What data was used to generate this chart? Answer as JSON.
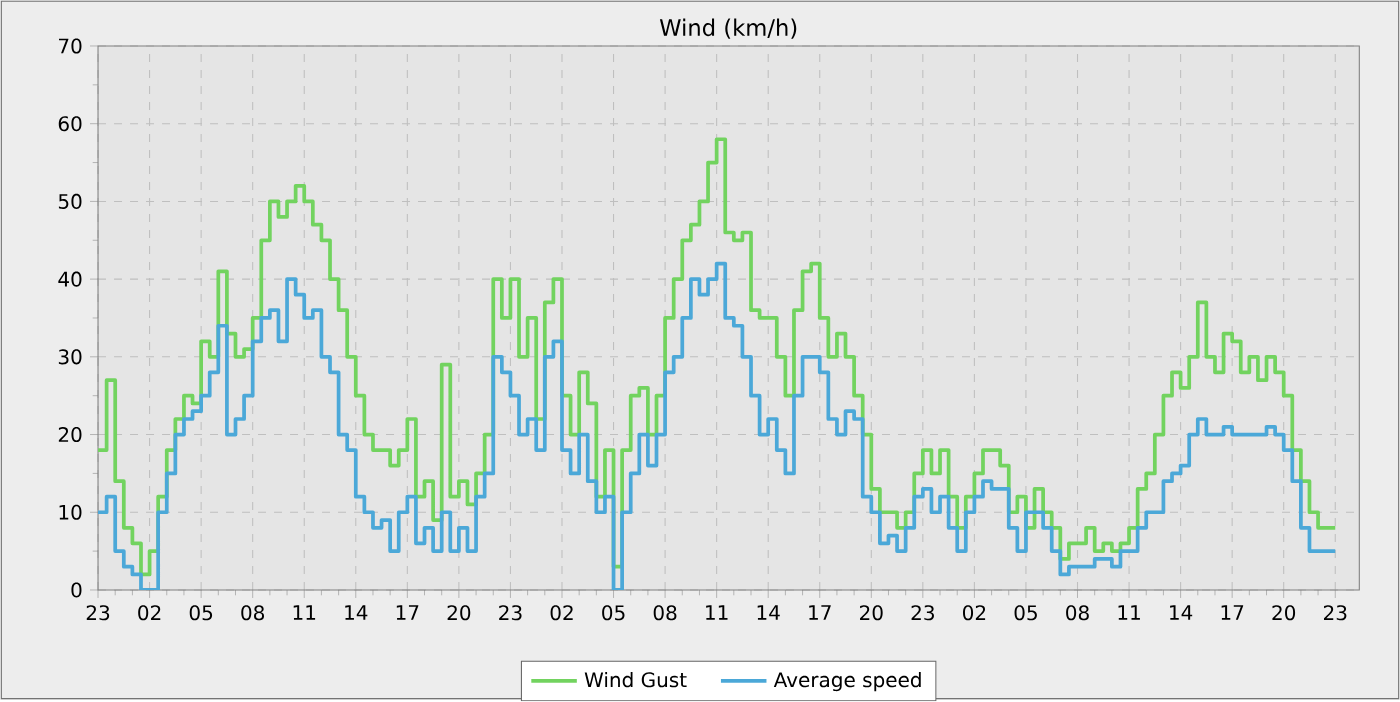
{
  "chart_data": {
    "type": "step",
    "title": "Wind (km/h)",
    "categories": [
      "23",
      null,
      null,
      null,
      null,
      null,
      "02",
      null,
      null,
      null,
      null,
      null,
      "05",
      null,
      null,
      null,
      null,
      null,
      "08",
      null,
      null,
      null,
      null,
      null,
      "11",
      null,
      null,
      null,
      null,
      null,
      "14",
      null,
      null,
      null,
      null,
      null,
      "17",
      null,
      null,
      null,
      null,
      null,
      "20",
      null,
      null,
      null,
      null,
      null,
      "23",
      null,
      null,
      null,
      null,
      null,
      "02",
      null,
      null,
      null,
      null,
      null,
      "05",
      null,
      null,
      null,
      null,
      null,
      "08",
      null,
      null,
      null,
      null,
      null,
      "11",
      null,
      null,
      null,
      null,
      null,
      "14",
      null,
      null,
      null,
      null,
      null,
      "17",
      null,
      null,
      null,
      null,
      null,
      "20",
      null,
      null,
      null,
      null,
      null,
      "23",
      null,
      null,
      null,
      null,
      null,
      "02",
      null,
      null,
      null,
      null,
      null,
      "05",
      null,
      null,
      null,
      null,
      null,
      "08",
      null,
      null,
      null,
      null,
      null,
      "11",
      null,
      null,
      null,
      null,
      null,
      "14",
      null,
      null,
      null,
      null,
      null,
      "17",
      null,
      null,
      null,
      null,
      null,
      "20",
      null,
      null,
      null,
      null,
      null,
      "23"
    ],
    "series": [
      {
        "name": "Wind Gust",
        "color": "#72d35f",
        "values": [
          18,
          27,
          14,
          8,
          6,
          2,
          5,
          12,
          18,
          22,
          25,
          24,
          32,
          30,
          41,
          33,
          30,
          31,
          35,
          45,
          50,
          48,
          50,
          52,
          50,
          47,
          45,
          40,
          36,
          30,
          25,
          20,
          18,
          18,
          16,
          18,
          22,
          12,
          14,
          9,
          29,
          12,
          14,
          11,
          15,
          20,
          40,
          35,
          40,
          30,
          35,
          22,
          37,
          40,
          25,
          20,
          28,
          24,
          12,
          18,
          3,
          18,
          25,
          26,
          20,
          25,
          35,
          40,
          45,
          47,
          50,
          55,
          58,
          46,
          45,
          46,
          36,
          35,
          35,
          30,
          25,
          36,
          41,
          42,
          35,
          30,
          33,
          30,
          25,
          20,
          13,
          10,
          10,
          8,
          10,
          15,
          18,
          15,
          18,
          12,
          8,
          12,
          15,
          18,
          18,
          16,
          10,
          12,
          8,
          13,
          10,
          8,
          4,
          6,
          6,
          8,
          5,
          6,
          5,
          6,
          8,
          13,
          15,
          20,
          25,
          28,
          26,
          30,
          37,
          30,
          28,
          33,
          32,
          28,
          30,
          27,
          30,
          28,
          25,
          18,
          14,
          10,
          8,
          8,
          8
        ]
      },
      {
        "name": "Average speed",
        "color": "#4ba8d8",
        "values": [
          10,
          12,
          5,
          3,
          2,
          0,
          0,
          10,
          15,
          20,
          22,
          23,
          25,
          28,
          34,
          20,
          22,
          25,
          32,
          35,
          36,
          32,
          40,
          38,
          35,
          36,
          30,
          28,
          20,
          18,
          12,
          10,
          8,
          9,
          5,
          10,
          12,
          6,
          8,
          5,
          10,
          5,
          8,
          5,
          12,
          15,
          30,
          28,
          25,
          20,
          22,
          18,
          30,
          32,
          18,
          15,
          20,
          14,
          10,
          12,
          0,
          10,
          15,
          20,
          16,
          20,
          28,
          30,
          35,
          40,
          38,
          40,
          42,
          35,
          34,
          30,
          25,
          20,
          22,
          18,
          15,
          25,
          30,
          30,
          28,
          22,
          20,
          23,
          22,
          12,
          10,
          6,
          7,
          5,
          8,
          12,
          13,
          10,
          12,
          8,
          5,
          10,
          12,
          14,
          13,
          13,
          8,
          5,
          10,
          10,
          8,
          5,
          2,
          3,
          3,
          3,
          4,
          4,
          3,
          5,
          5,
          8,
          10,
          10,
          14,
          15,
          16,
          20,
          22,
          20,
          20,
          21,
          20,
          20,
          20,
          20,
          21,
          20,
          18,
          14,
          8,
          5,
          5,
          5,
          5
        ]
      }
    ],
    "ylim": [
      0,
      70
    ],
    "yticks": [
      0,
      {
        "value": 5,
        "label": null
      },
      10,
      {
        "value": 15,
        "label": null
      },
      20,
      {
        "value": 25,
        "label": null
      },
      30,
      {
        "value": 35,
        "label": null
      },
      40,
      {
        "value": 45,
        "label": null
      },
      50,
      {
        "value": 55,
        "label": null
      },
      60,
      {
        "value": 65,
        "label": null
      },
      70
    ],
    "grid": true,
    "legend": "bottom",
    "marker": "none",
    "line_style": "solid"
  }
}
